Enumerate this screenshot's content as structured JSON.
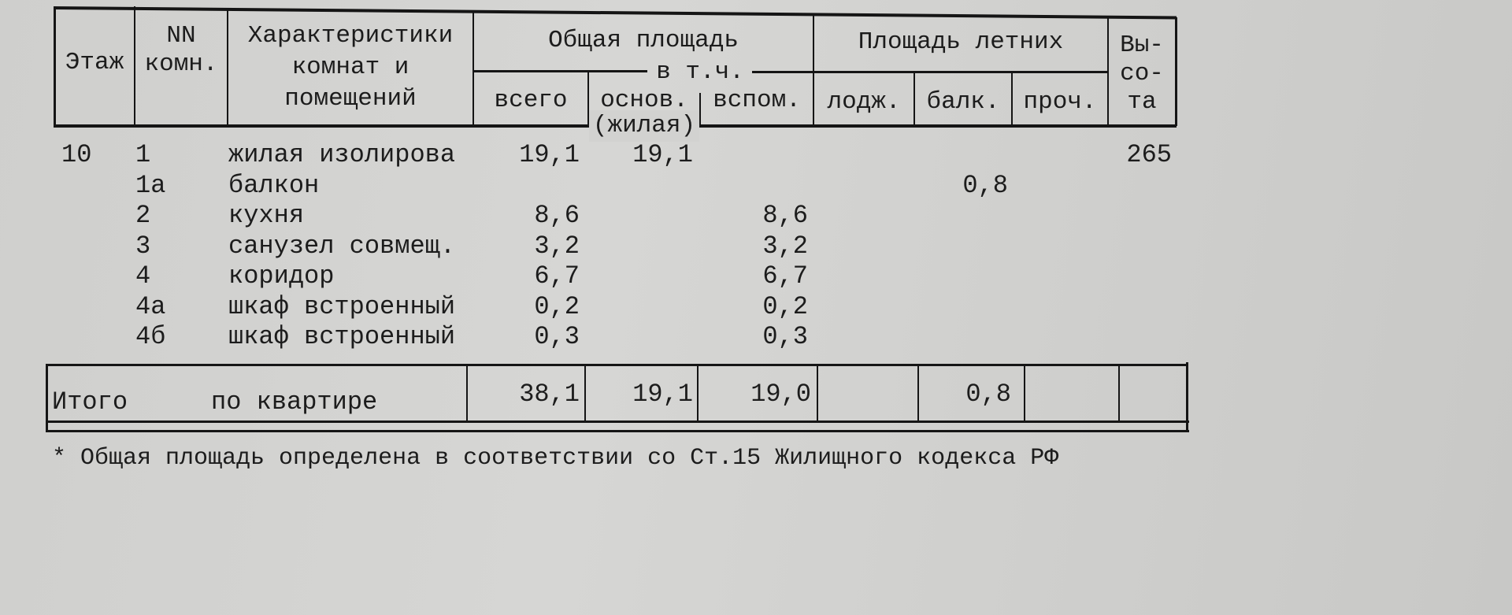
{
  "header": {
    "floor": "Этаж",
    "room_no": [
      "NN",
      "комн."
    ],
    "description": [
      "Характеристики",
      "комнат и",
      "помещений"
    ],
    "total_area": "Общая площадь",
    "incl": "в т.ч.",
    "total": "всего",
    "main": "основ.",
    "main_sub": "(жилая)",
    "aux": "вспом.",
    "summer_area": "Площадь летних",
    "loggia": "лодж.",
    "balcony": "балк.",
    "other": "проч.",
    "height": [
      "Вы-",
      "со-",
      "та"
    ]
  },
  "rows": [
    {
      "floor": "10",
      "no": "1",
      "name": "жилая изолирова",
      "total": "19,1",
      "main": "19,1",
      "aux": "",
      "balcony": "",
      "height": "265"
    },
    {
      "floor": "",
      "no": "1а",
      "name": "балкон",
      "total": "",
      "main": "",
      "aux": "",
      "balcony": "0,8",
      "height": ""
    },
    {
      "floor": "",
      "no": "2",
      "name": "кухня",
      "total": "8,6",
      "main": "",
      "aux": "8,6",
      "balcony": "",
      "height": ""
    },
    {
      "floor": "",
      "no": "3",
      "name": "санузел совмещ.",
      "total": "3,2",
      "main": "",
      "aux": "3,2",
      "balcony": "",
      "height": ""
    },
    {
      "floor": "",
      "no": "4",
      "name": "коридор",
      "total": "6,7",
      "main": "",
      "aux": "6,7",
      "balcony": "",
      "height": ""
    },
    {
      "floor": "",
      "no": "4а",
      "name": "шкаф встроенный",
      "total": "0,2",
      "main": "",
      "aux": "0,2",
      "balcony": "",
      "height": ""
    },
    {
      "floor": "",
      "no": "4б",
      "name": "шкаф встроенный",
      "total": "0,3",
      "main": "",
      "aux": "0,3",
      "balcony": "",
      "height": ""
    }
  ],
  "totals": {
    "label": "Итого",
    "label2": "по квартире",
    "total": "38,1",
    "main": "19,1",
    "aux": "19,0",
    "balcony": "0,8"
  },
  "footnote": "* Общая площадь определена в соответствии со Ст.15 Жилищного кодекса РФ"
}
